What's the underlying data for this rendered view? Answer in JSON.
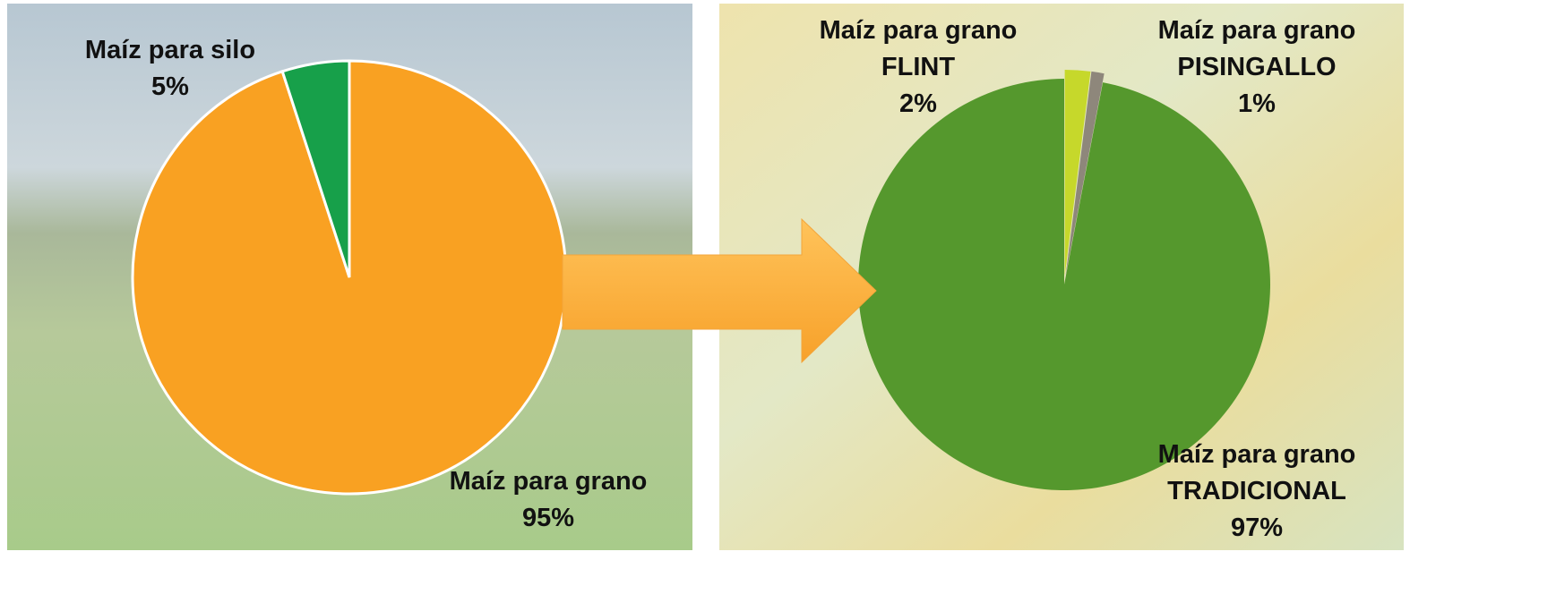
{
  "chart_data": [
    {
      "type": "pie",
      "categories": [
        "Maíz para grano",
        "Maíz para silo"
      ],
      "values": [
        95,
        5
      ],
      "value_labels": [
        "95%",
        "5%"
      ],
      "colors": [
        "#f9a122",
        "#17a04a"
      ]
    },
    {
      "type": "pie",
      "categories": [
        "Maíz para grano\nFLINT",
        "Maíz para grano\nPISINGALLO",
        "Maíz para grano\nTRADICIONAL"
      ],
      "values": [
        2,
        1,
        97
      ],
      "value_labels": [
        "2%",
        "1%",
        "97%"
      ],
      "colors": [
        "#c6d82b",
        "#8e877b",
        "#55982d"
      ]
    }
  ]
}
